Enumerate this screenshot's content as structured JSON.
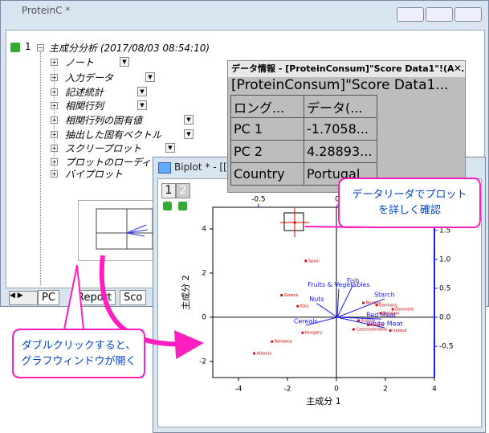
{
  "back_window": {
    "title": "ProteinC *",
    "tree_root": {
      "index": "1",
      "label": "主成分分析 (2017/08/03 08:54:10)"
    },
    "tree_items": [
      "ノート",
      "入力データ",
      "記述統計",
      "相関行列",
      "相関行列の固有値",
      "抽出した固有ベクトル",
      "スクリープロット",
      "プロットのローディ",
      "バイプロット"
    ],
    "tabs": [
      "PC",
      "Report",
      "Sco"
    ]
  },
  "data_info": {
    "title": "データ情報 - [ProteinConsum]\"Score Data1\"!(A...",
    "source": "[ProteinConsum]\"Score Data1...",
    "table": {
      "header": [
        "ロング...",
        "データ(..."
      ],
      "rows": [
        [
          "PC 1",
          "-1.7058..."
        ],
        [
          "PC 2",
          "4.28893..."
        ],
        [
          "Country",
          "Portugal"
        ]
      ]
    }
  },
  "biplot_window": {
    "title": "Biplot * - [[P",
    "layers": [
      "1",
      "2"
    ],
    "chart": {
      "type": "scatter",
      "x_label": "主成分 1",
      "y_label": "主成分 2",
      "xlim": [
        -5.05,
        4
      ],
      "xticks": [
        -4,
        -2,
        0,
        2,
        4
      ],
      "ylim": [
        -2.73,
        4.98
      ],
      "yticks": [
        -2,
        0,
        2,
        4
      ],
      "x2lim": [
        -0.79,
        0.617
      ],
      "x2ticks": [
        -0.5,
        0,
        0.5
      ],
      "y2lim": [
        -1.04,
        1.9
      ],
      "y2ticks": [
        -0.5,
        {
          "value": 0,
          "label": "0.0"
        },
        0.5,
        {
          "value": 1,
          "label": "1.0"
        },
        1.5
      ],
      "point_color": "#e00000",
      "loading_color": "#1a1aff",
      "points": {
        "x": [
          -1.7058,
          -1.25,
          -2.24,
          -1.58,
          -1.38,
          -3.36,
          -2.63,
          1.64,
          2.3,
          1.8,
          0.7,
          1.3,
          2.2,
          1.1,
          0.9
        ],
        "y": [
          4.28893,
          2.55,
          1.0,
          0.5,
          -0.7,
          -1.64,
          -1.1,
          0.55,
          0.36,
          0.18,
          -0.55,
          -0.35,
          -0.6,
          0.65,
          -0.15
        ],
        "labels": [
          null,
          "Spain",
          "Greece",
          "Italy",
          "Hungary",
          "Albania",
          "Romania",
          "Germany",
          "Denmark",
          "Belgium",
          "Czechoslovakia",
          "Poland",
          "Ireland",
          "Norway",
          "Austria"
        ]
      },
      "loadings": {
        "names": [
          "Fish",
          "Fruits & Vegetables",
          "Starch",
          "Nuts",
          "Cereals",
          "Red Meat",
          "White Meat"
        ],
        "x": [
          0.1,
          0.01,
          0.3,
          -0.13,
          -0.2,
          0.28,
          0.3
        ],
        "y": [
          0.56,
          0.49,
          0.32,
          0.24,
          -0.14,
          -0.03,
          -0.18
        ]
      }
    }
  },
  "callouts": [
    "データリーダでプロット\nを詳しく確認",
    "ダブルクリックすると、\nグラフウィンドウが開く"
  ]
}
